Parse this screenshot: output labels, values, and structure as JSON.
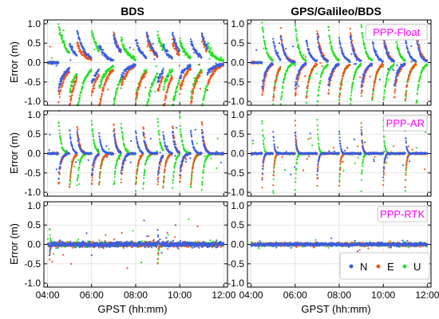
{
  "figure": {
    "column_titles": [
      "BDS",
      "GPS/Galileo/BDS"
    ],
    "ylabel": "Error (m)",
    "xlabel": "GPST (hh:mm)",
    "legend": [
      "N",
      "E",
      "U"
    ]
  },
  "colors": {
    "N": "#3a5fe0",
    "E": "#f25418",
    "U": "#22e022",
    "panel_label": "#ff00ff",
    "grid": "#d8d8d8"
  },
  "chart_data": {
    "type": "scatter",
    "x_ticks": [
      "04:00",
      "06:00",
      "08:00",
      "10:00",
      "12:00"
    ],
    "xlim": [
      "03:50",
      "12:10"
    ],
    "ylim": [
      -1.1,
      1.1
    ],
    "y_ticks": [
      -1.0,
      -0.5,
      0.0,
      0.5,
      1.0
    ],
    "y_tick_labels": [
      "-1.0",
      "-0.5",
      "0.0",
      "0.5",
      "1.0"
    ],
    "series_names": [
      "N",
      "E",
      "U"
    ],
    "grid": true,
    "legend_position": "bottom-right of lower-right panel",
    "panels": [
      {
        "row": 0,
        "col": 0,
        "label": "",
        "events": [
          "04:30",
          "05:00",
          "05:20",
          "06:00",
          "06:20",
          "07:00",
          "07:20",
          "08:00",
          "08:30",
          "09:00",
          "09:15",
          "09:40",
          "10:00",
          "10:30",
          "11:00",
          "11:15"
        ],
        "peak": 1.0,
        "settle_min": 20,
        "base_sd": 0.015
      },
      {
        "row": 0,
        "col": 1,
        "label": "PPP-Float",
        "events": [
          "04:30",
          "05:00",
          "05:20",
          "06:00",
          "06:30",
          "07:00",
          "07:30",
          "08:00",
          "08:30",
          "09:00",
          "09:30",
          "10:00",
          "10:30",
          "11:00",
          "11:30"
        ],
        "peak": 1.0,
        "settle_min": 10,
        "base_sd": 0.012
      },
      {
        "row": 1,
        "col": 0,
        "label": "",
        "events": [
          "04:30",
          "05:00",
          "05:20",
          "06:00",
          "06:20",
          "07:00",
          "07:20",
          "08:00",
          "08:20",
          "09:00",
          "09:15",
          "09:40",
          "10:00",
          "10:30",
          "11:00"
        ],
        "peak": 0.9,
        "settle_min": 6,
        "base_sd": 0.012
      },
      {
        "row": 1,
        "col": 1,
        "label": "PPP-AR",
        "events": [
          "04:30",
          "05:00",
          "06:00",
          "07:00",
          "08:00",
          "09:00",
          "10:00",
          "11:00"
        ],
        "peak": 0.9,
        "settle_min": 3,
        "base_sd": 0.01
      },
      {
        "row": 2,
        "col": 0,
        "label": "",
        "events": [
          "04:05",
          "09:00"
        ],
        "peak": 0.5,
        "settle_min": 2,
        "base_sd": 0.03
      },
      {
        "row": 2,
        "col": 1,
        "label": "PPP-RTK",
        "events": [],
        "peak": 0.0,
        "settle_min": 1,
        "base_sd": 0.02
      }
    ]
  }
}
